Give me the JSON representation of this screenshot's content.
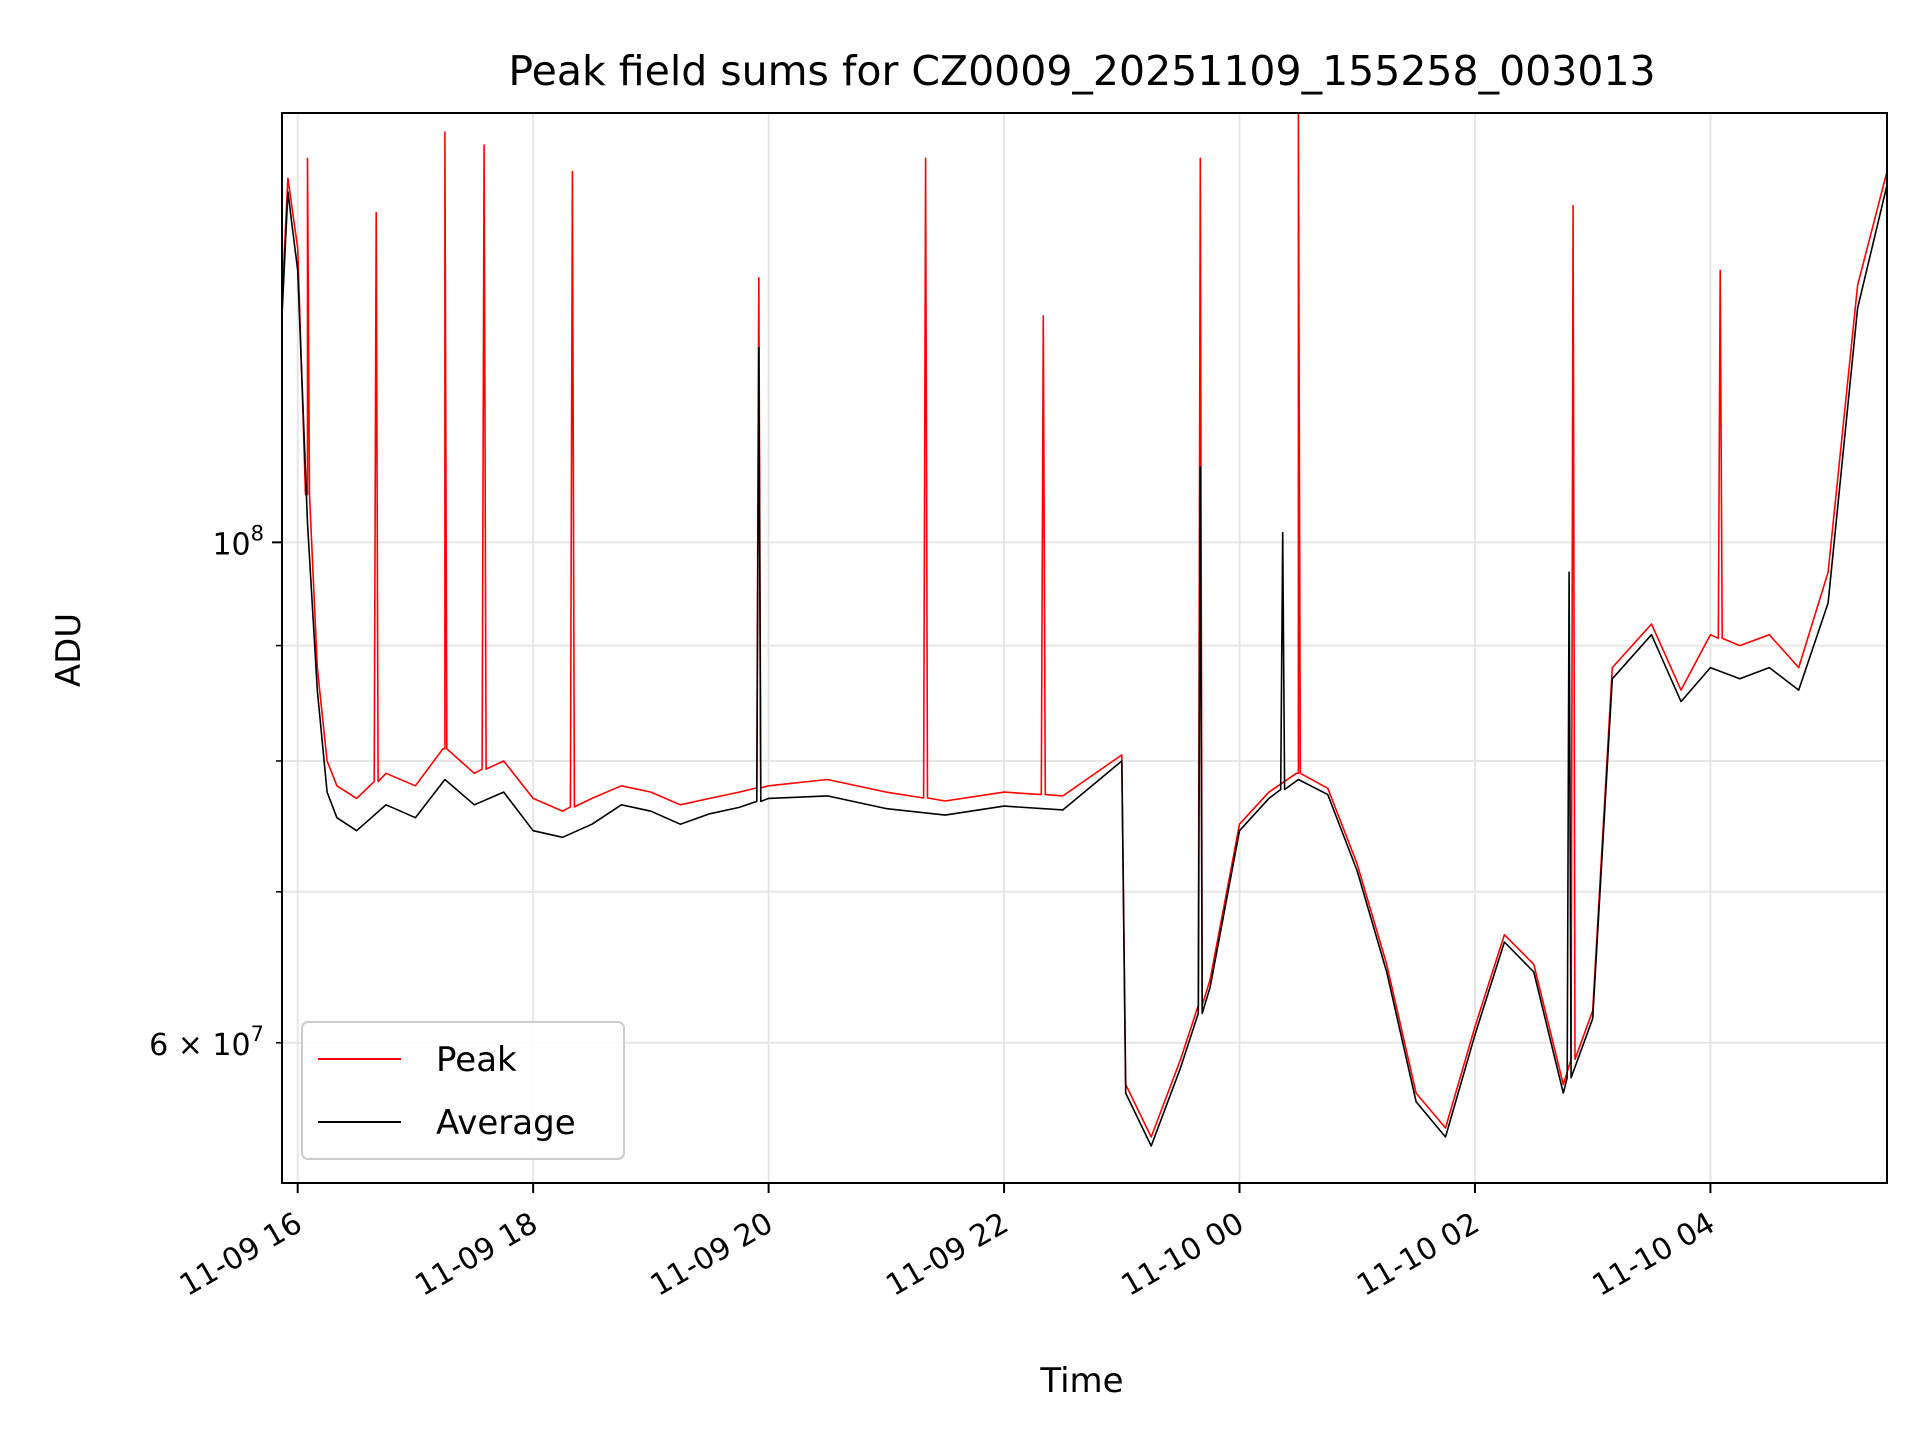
{
  "chart_data": {
    "type": "line",
    "title": "Peak field sums for CZ0009_20251109_155258_003013",
    "xlabel": "Time",
    "ylabel": "ADU",
    "yscale": "log",
    "ylim": [
      52000000,
      155000000
    ],
    "xlim": [
      "2025-11-09 15:52",
      "2025-11-10 05:30"
    ],
    "grid": true,
    "legend_position": "lower-left",
    "x_ticks": [
      "11-09 16",
      "11-09 18",
      "11-09 20",
      "11-09 22",
      "11-10 00",
      "11-10 02",
      "11-10 04"
    ],
    "x_tick_values": [
      "2025-11-09 16:00",
      "2025-11-09 18:00",
      "2025-11-09 20:00",
      "2025-11-09 22:00",
      "2025-11-10 00:00",
      "2025-11-10 02:00",
      "2025-11-10 04:00"
    ],
    "y_major_ticks": [
      {
        "value": 100000000,
        "base": "10",
        "exp": "8"
      }
    ],
    "y_minor_ticks": [
      {
        "value": 60000000,
        "mant": "6",
        "base": "10",
        "exp": "7"
      }
    ],
    "y_minor_grid": [
      60000000,
      70000000,
      80000000,
      90000000
    ],
    "x": [
      "2025-11-09 15:52",
      "2025-11-09 15:55",
      "2025-11-09 16:00",
      "2025-11-09 16:05",
      "2025-11-09 16:10",
      "2025-11-09 16:15",
      "2025-11-09 16:20",
      "2025-11-09 16:30",
      "2025-11-09 16:45",
      "2025-11-09 17:00",
      "2025-11-09 17:15",
      "2025-11-09 17:30",
      "2025-11-09 17:45",
      "2025-11-09 18:00",
      "2025-11-09 18:15",
      "2025-11-09 18:30",
      "2025-11-09 18:45",
      "2025-11-09 19:00",
      "2025-11-09 19:15",
      "2025-11-09 19:30",
      "2025-11-09 19:45",
      "2025-11-09 20:00",
      "2025-11-09 20:30",
      "2025-11-09 21:00",
      "2025-11-09 21:30",
      "2025-11-09 22:00",
      "2025-11-09 22:30",
      "2025-11-09 23:00",
      "2025-11-09 23:02",
      "2025-11-09 23:15",
      "2025-11-09 23:30",
      "2025-11-09 23:45",
      "2025-11-10 00:00",
      "2025-11-10 00:15",
      "2025-11-10 00:30",
      "2025-11-10 00:45",
      "2025-11-10 01:00",
      "2025-11-10 01:15",
      "2025-11-10 01:30",
      "2025-11-10 01:45",
      "2025-11-10 02:00",
      "2025-11-10 02:15",
      "2025-11-10 02:30",
      "2025-11-10 02:45",
      "2025-11-10 03:00",
      "2025-11-10 03:10",
      "2025-11-10 03:30",
      "2025-11-10 03:45",
      "2025-11-10 04:00",
      "2025-11-10 04:15",
      "2025-11-10 04:30",
      "2025-11-10 04:45",
      "2025-11-10 05:00",
      "2025-11-10 05:15",
      "2025-11-10 05:30"
    ],
    "series": [
      {
        "name": "Peak",
        "color": "#ff0000",
        "values": [
          128000000,
          145000000,
          135000000,
          105000000,
          88000000,
          80000000,
          78000000,
          77000000,
          79000000,
          78000000,
          81000000,
          79000000,
          80000000,
          77000000,
          76000000,
          77000000,
          78000000,
          77500000,
          76500000,
          77000000,
          77500000,
          78000000,
          78500000,
          77500000,
          76800000,
          77500000,
          77200000,
          80500000,
          57500000,
          54500000,
          59000000,
          64000000,
          75000000,
          77500000,
          79000000,
          77800000,
          72000000,
          65000000,
          57000000,
          55000000,
          61000000,
          67000000,
          65000000,
          57500000,
          62000000,
          88000000,
          92000000,
          86000000,
          91000000,
          90000000,
          91000000,
          88000000,
          97000000,
          130000000,
          146000000
        ]
      },
      {
        "name": "Average",
        "color": "#000000",
        "values": [
          126000000,
          143000000,
          132000000,
          102000000,
          86000000,
          77500000,
          75500000,
          74500000,
          76500000,
          75500000,
          78500000,
          76500000,
          77500000,
          74500000,
          74000000,
          75000000,
          76500000,
          76000000,
          75000000,
          75800000,
          76300000,
          77000000,
          77200000,
          76200000,
          75700000,
          76400000,
          76100000,
          80000000,
          57000000,
          54000000,
          58500000,
          63500000,
          74500000,
          77000000,
          78500000,
          77300000,
          71500000,
          64500000,
          56500000,
          54500000,
          60500000,
          66500000,
          64500000,
          57000000,
          61500000,
          87000000,
          91000000,
          85000000,
          88000000,
          87000000,
          88000000,
          86000000,
          94000000,
          127000000,
          144000000
        ]
      }
    ],
    "peak_spikes": [
      {
        "t": "2025-11-09 16:05",
        "v": 148000000
      },
      {
        "t": "2025-11-09 16:40",
        "v": 140000000
      },
      {
        "t": "2025-11-09 17:15",
        "v": 152000000
      },
      {
        "t": "2025-11-09 17:35",
        "v": 150000000
      },
      {
        "t": "2025-11-09 18:20",
        "v": 146000000
      },
      {
        "t": "2025-11-09 19:55",
        "v": 131000000
      },
      {
        "t": "2025-11-09 21:20",
        "v": 148000000
      },
      {
        "t": "2025-11-09 22:20",
        "v": 126000000
      },
      {
        "t": "2025-11-09 23:40",
        "v": 148000000
      },
      {
        "t": "2025-11-10 00:30",
        "v": 155000000
      },
      {
        "t": "2025-11-10 02:50",
        "v": 141000000
      },
      {
        "t": "2025-11-10 04:05",
        "v": 132000000
      }
    ],
    "avg_spikes": [
      {
        "t": "2025-11-09 19:55",
        "v": 122000000
      },
      {
        "t": "2025-11-09 23:40",
        "v": 108000000
      },
      {
        "t": "2025-11-10 00:22",
        "v": 101000000
      },
      {
        "t": "2025-11-10 02:48",
        "v": 97000000
      }
    ]
  }
}
